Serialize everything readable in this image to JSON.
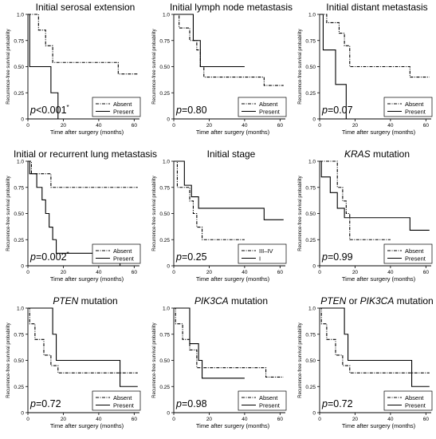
{
  "chart_data": [
    {
      "type": "line",
      "title": "Initial serosal extension",
      "title_italic_prefix": "",
      "title_suffix": "",
      "xlabel": "Time after surgery (months)",
      "ylabel": "Recurrence-free survival probability",
      "x_ticks": [
        0,
        20,
        40,
        60
      ],
      "y_ticks": [
        0,
        0.25,
        0.5,
        0.75,
        1.0
      ],
      "y_tick_labels": [
        "0",
        "0.25",
        "0.50",
        "0.75",
        "1.0"
      ],
      "xlim": [
        0,
        63
      ],
      "ylim": [
        0,
        1.0
      ],
      "p_label": "p",
      "p_value": "<0.001",
      "p_star": "*",
      "legend_position": "bottom-right",
      "series": [
        {
          "name": "Absent",
          "style": "dashdot",
          "x": [
            0,
            6,
            6,
            10,
            10,
            14,
            14,
            51,
            51,
            62
          ],
          "y": [
            1.0,
            1.0,
            0.85,
            0.85,
            0.7,
            0.7,
            0.54,
            0.54,
            0.43,
            0.43
          ]
        },
        {
          "name": "Present",
          "style": "solid",
          "x": [
            0,
            1,
            1,
            13,
            13,
            17,
            17
          ],
          "y": [
            1.0,
            1.0,
            0.5,
            0.5,
            0.25,
            0.25,
            0
          ]
        }
      ]
    },
    {
      "type": "line",
      "title": "Initial lymph node metastasis",
      "title_italic_prefix": "",
      "title_suffix": "",
      "xlabel": "Time after surgery (months)",
      "ylabel": "Recurrence-free survival probability",
      "x_ticks": [
        0,
        20,
        40,
        60
      ],
      "y_ticks": [
        0,
        0.25,
        0.5,
        0.75,
        1.0
      ],
      "y_tick_labels": [
        "0",
        "0.25",
        "0.50",
        "0.75",
        "1.0"
      ],
      "xlim": [
        0,
        63
      ],
      "ylim": [
        0,
        1.0
      ],
      "p_label": "p",
      "p_value": "=0.80",
      "p_star": "",
      "legend_position": "bottom-right",
      "series": [
        {
          "name": "Absent",
          "style": "dashdot",
          "x": [
            0,
            3,
            3,
            9,
            9,
            13,
            13,
            15,
            15,
            17,
            17,
            51,
            51,
            62
          ],
          "y": [
            1.0,
            1.0,
            0.87,
            0.87,
            0.75,
            0.75,
            0.66,
            0.66,
            0.5,
            0.5,
            0.4,
            0.4,
            0.32,
            0.32
          ]
        },
        {
          "name": "Present",
          "style": "solid",
          "x": [
            0,
            11,
            11,
            15,
            15,
            40
          ],
          "y": [
            1.0,
            1.0,
            0.75,
            0.75,
            0.5,
            0.5
          ]
        }
      ]
    },
    {
      "type": "line",
      "title": "Initial distant metastasis",
      "title_italic_prefix": "",
      "title_suffix": "",
      "xlabel": "Time after surgery (months)",
      "ylabel": "Recurrence-free survival probability",
      "x_ticks": [
        0,
        20,
        40,
        60
      ],
      "y_ticks": [
        0,
        0.25,
        0.5,
        0.75,
        1.0
      ],
      "y_tick_labels": [
        "0",
        "0.25",
        "0.50",
        "0.75",
        "1.0"
      ],
      "xlim": [
        0,
        63
      ],
      "ylim": [
        0,
        1.0
      ],
      "p_label": "p",
      "p_value": "=0.07",
      "p_star": "",
      "legend_position": "bottom-right",
      "series": [
        {
          "name": "Absent",
          "style": "dashdot",
          "x": [
            0,
            4,
            4,
            11,
            11,
            14,
            14,
            17,
            17,
            51,
            51,
            62
          ],
          "y": [
            1.0,
            1.0,
            0.92,
            0.92,
            0.82,
            0.82,
            0.7,
            0.7,
            0.5,
            0.5,
            0.4,
            0.4
          ]
        },
        {
          "name": "Present",
          "style": "solid",
          "x": [
            0,
            2,
            2,
            9,
            9,
            15,
            15
          ],
          "y": [
            1.0,
            1.0,
            0.66,
            0.66,
            0.33,
            0.33,
            0
          ]
        }
      ]
    },
    {
      "type": "line",
      "title": "Initial or recurrent lung metastasis",
      "title_italic_prefix": "",
      "title_suffix": "",
      "xlabel": "Time after surgery (months)",
      "ylabel": "Recurrence-free survival probability",
      "x_ticks": [
        0,
        20,
        40,
        60
      ],
      "y_ticks": [
        0,
        0.25,
        0.5,
        0.75,
        1.0
      ],
      "y_tick_labels": [
        "0",
        "0.25",
        "0.50",
        "0.75",
        "1.0"
      ],
      "xlim": [
        0,
        63
      ],
      "ylim": [
        0,
        1.0
      ],
      "p_label": "p",
      "p_value": "=0.002",
      "p_star": "*",
      "legend_position": "bottom-right",
      "series": [
        {
          "name": "Absent",
          "style": "dashdot",
          "x": [
            0,
            2,
            2,
            13,
            13,
            62
          ],
          "y": [
            1.0,
            1.0,
            0.88,
            0.88,
            0.75,
            0.75
          ]
        },
        {
          "name": "Present",
          "style": "solid",
          "x": [
            0,
            1,
            1,
            5,
            5,
            8,
            8,
            10,
            10,
            12,
            12,
            14,
            14,
            16,
            16,
            52,
            52
          ],
          "y": [
            1.0,
            1.0,
            0.88,
            0.88,
            0.75,
            0.75,
            0.63,
            0.63,
            0.5,
            0.5,
            0.37,
            0.37,
            0.25,
            0.25,
            0.12,
            0.12,
            0
          ]
        }
      ]
    },
    {
      "type": "line",
      "title": "Initial stage",
      "title_italic_prefix": "",
      "title_suffix": "",
      "xlabel": "Time after surgery (months)",
      "ylabel": "Recurrence-free survival probability",
      "x_ticks": [
        0,
        20,
        40,
        60
      ],
      "y_ticks": [
        0,
        0.25,
        0.5,
        0.75,
        1.0
      ],
      "y_tick_labels": [
        "0",
        "0.25",
        "0.50",
        "0.75",
        "1.0"
      ],
      "xlim": [
        0,
        63
      ],
      "ylim": [
        0,
        1.0
      ],
      "p_label": "p",
      "p_value": "=0.25",
      "p_star": "",
      "legend_position": "bottom-right",
      "series": [
        {
          "name": "III–IV",
          "style": "dashdot",
          "x": [
            0,
            2,
            2,
            9,
            9,
            11,
            11,
            13,
            13,
            16,
            16,
            40
          ],
          "y": [
            1.0,
            1.0,
            0.75,
            0.75,
            0.62,
            0.62,
            0.5,
            0.5,
            0.37,
            0.37,
            0.25,
            0.25
          ]
        },
        {
          "name": "I",
          "style": "solid",
          "x": [
            0,
            6,
            6,
            10,
            10,
            14,
            14,
            16,
            16,
            51,
            51,
            62
          ],
          "y": [
            1.0,
            1.0,
            0.77,
            0.77,
            0.66,
            0.66,
            0.55,
            0.55,
            0.55,
            0.55,
            0.44,
            0.44
          ]
        }
      ]
    },
    {
      "type": "line",
      "title": "",
      "title_italic_prefix": "KRAS",
      "title_suffix": " mutation",
      "xlabel": "Time after surgery (months)",
      "ylabel": "Recurrence-free survival probability",
      "x_ticks": [
        0,
        20,
        40,
        60
      ],
      "y_ticks": [
        0,
        0.25,
        0.5,
        0.75,
        1.0
      ],
      "y_tick_labels": [
        "0",
        "0.25",
        "0.50",
        "0.75",
        "1.0"
      ],
      "xlim": [
        0,
        63
      ],
      "ylim": [
        0,
        1.0
      ],
      "p_label": "p",
      "p_value": "=0.99",
      "p_star": "",
      "legend_position": "bottom-right",
      "series": [
        {
          "name": "Absent",
          "style": "dashdot",
          "x": [
            0,
            10,
            10,
            13,
            13,
            15,
            15,
            17,
            17,
            40
          ],
          "y": [
            1.0,
            1.0,
            0.75,
            0.75,
            0.62,
            0.62,
            0.5,
            0.5,
            0.25,
            0.25
          ]
        },
        {
          "name": "Present",
          "style": "solid",
          "x": [
            0,
            1,
            1,
            6,
            6,
            10,
            10,
            14,
            14,
            51,
            51,
            62
          ],
          "y": [
            1.0,
            1.0,
            0.85,
            0.85,
            0.7,
            0.7,
            0.55,
            0.55,
            0.46,
            0.46,
            0.34,
            0.34
          ]
        }
      ]
    },
    {
      "type": "line",
      "title": "",
      "title_italic_prefix": "PTEN",
      "title_suffix": " mutation",
      "xlabel": "Time after surgery (months)",
      "ylabel": "Recurrence-free survival probability",
      "x_ticks": [
        0,
        20,
        40,
        60
      ],
      "y_ticks": [
        0,
        0.25,
        0.5,
        0.75,
        1.0
      ],
      "y_tick_labels": [
        "0",
        "0.25",
        "0.50",
        "0.75",
        "1.0"
      ],
      "xlim": [
        0,
        63
      ],
      "ylim": [
        0,
        1.0
      ],
      "p_label": "p",
      "p_value": "=0.72",
      "p_star": "",
      "legend_position": "bottom-right",
      "series": [
        {
          "name": "Absent",
          "style": "dashdot",
          "x": [
            0,
            1,
            1,
            4,
            4,
            9,
            9,
            13,
            13,
            17,
            17,
            62
          ],
          "y": [
            1.0,
            1.0,
            0.85,
            0.85,
            0.7,
            0.7,
            0.55,
            0.55,
            0.45,
            0.45,
            0.38,
            0.38
          ]
        },
        {
          "name": "Present",
          "style": "solid",
          "x": [
            0,
            14,
            14,
            16,
            16,
            52,
            52,
            62
          ],
          "y": [
            1.0,
            1.0,
            0.75,
            0.75,
            0.5,
            0.5,
            0.25,
            0.25
          ]
        }
      ]
    },
    {
      "type": "line",
      "title": "",
      "title_italic_prefix": "PIK3CA",
      "title_suffix": " mutation",
      "xlabel": "Time after surgery (months)",
      "ylabel": "Recurrence-free survival probability",
      "x_ticks": [
        0,
        20,
        40,
        60
      ],
      "y_ticks": [
        0,
        0.25,
        0.5,
        0.75,
        1.0
      ],
      "y_tick_labels": [
        "0",
        "0.25",
        "0.50",
        "0.75",
        "1.0"
      ],
      "xlim": [
        0,
        63
      ],
      "ylim": [
        0,
        1.0
      ],
      "p_label": "p",
      "p_value": "=0.98",
      "p_star": "",
      "legend_position": "bottom-right",
      "series": [
        {
          "name": "Absent",
          "style": "dashdot",
          "x": [
            0,
            1,
            1,
            5,
            5,
            9,
            9,
            13,
            13,
            15,
            15,
            52,
            52,
            62
          ],
          "y": [
            1.0,
            1.0,
            0.85,
            0.85,
            0.7,
            0.7,
            0.6,
            0.6,
            0.43,
            0.43,
            0.43,
            0.43,
            0.34,
            0.34
          ]
        },
        {
          "name": "Present",
          "style": "solid",
          "x": [
            0,
            9,
            9,
            14,
            14,
            16,
            16,
            40
          ],
          "y": [
            1.0,
            1.0,
            0.66,
            0.66,
            0.5,
            0.5,
            0.33,
            0.33
          ]
        }
      ]
    },
    {
      "type": "line",
      "title": "",
      "title_italic_prefix": "PTEN",
      "title_suffix": " or ",
      "title_italic_suffix": "PIK3CA",
      "title_tail": " mutation",
      "xlabel": "Time after surgery (months)",
      "ylabel": "Recurrence-free survival probability",
      "x_ticks": [
        0,
        20,
        40,
        60
      ],
      "y_ticks": [
        0,
        0.25,
        0.5,
        0.75,
        1.0
      ],
      "y_tick_labels": [
        "0",
        "0.25",
        "0.50",
        "0.75",
        "1.0"
      ],
      "xlim": [
        0,
        63
      ],
      "ylim": [
        0,
        1.0
      ],
      "p_label": "p",
      "p_value": "=0.72",
      "p_star": "",
      "legend_position": "bottom-right",
      "series": [
        {
          "name": "Absent",
          "style": "dashdot",
          "x": [
            0,
            1,
            1,
            4,
            4,
            9,
            9,
            13,
            13,
            17,
            17,
            62
          ],
          "y": [
            1.0,
            1.0,
            0.85,
            0.85,
            0.7,
            0.7,
            0.55,
            0.55,
            0.45,
            0.45,
            0.38,
            0.38
          ]
        },
        {
          "name": "Present",
          "style": "solid",
          "x": [
            0,
            14,
            14,
            16,
            16,
            52,
            52,
            62
          ],
          "y": [
            1.0,
            1.0,
            0.75,
            0.75,
            0.5,
            0.5,
            0.25,
            0.25
          ]
        }
      ]
    }
  ]
}
